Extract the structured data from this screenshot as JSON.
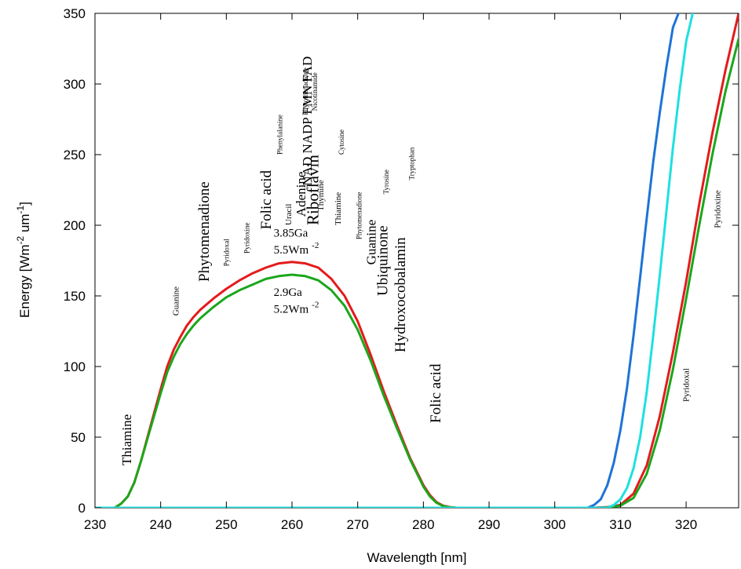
{
  "chart_data": {
    "type": "line",
    "xlabel": "Wavelength [nm]",
    "ylabel_main": "Energy [Wm",
    "ylabel_sup1": "-2",
    "ylabel_mid": " um",
    "ylabel_sup2": "-1",
    "ylabel_end": "]",
    "xlim": [
      230,
      328
    ],
    "ylim": [
      0,
      350
    ],
    "xticks": [
      230,
      240,
      250,
      260,
      270,
      280,
      290,
      300,
      310,
      320
    ],
    "yticks": [
      0,
      50,
      100,
      150,
      200,
      250,
      300,
      350
    ],
    "grid": false,
    "series": [
      {
        "color": "#e41a1c",
        "x": [
          230,
          233,
          234,
          235,
          236,
          237,
          238,
          239,
          240,
          241,
          242,
          243,
          244,
          245,
          246,
          248,
          250,
          252,
          254,
          256,
          258,
          260,
          262,
          264,
          266,
          268,
          270,
          272,
          274,
          276,
          278,
          280,
          281,
          282,
          283,
          284,
          285,
          286,
          290,
          300,
          306,
          308,
          310,
          312,
          314,
          316,
          318,
          320,
          322,
          324,
          326,
          328
        ],
        "y": [
          0,
          0,
          3,
          8,
          18,
          33,
          50,
          67,
          84,
          100,
          112,
          121,
          129,
          135,
          140,
          148,
          155,
          161,
          166,
          170,
          173,
          174,
          173,
          170,
          162,
          150,
          132,
          108,
          82,
          58,
          35,
          16,
          9,
          4,
          1.5,
          0.5,
          0,
          0,
          0,
          0,
          0,
          0.5,
          2,
          10,
          30,
          65,
          110,
          160,
          215,
          265,
          310,
          350
        ]
      },
      {
        "color": "#1ba61b",
        "x": [
          230,
          233,
          234,
          235,
          236,
          237,
          238,
          239,
          240,
          241,
          242,
          243,
          244,
          245,
          246,
          248,
          250,
          252,
          254,
          256,
          258,
          260,
          262,
          264,
          266,
          268,
          270,
          272,
          274,
          276,
          278,
          280,
          281,
          282,
          283,
          284,
          285,
          286,
          290,
          300,
          306,
          308,
          310,
          312,
          314,
          316,
          318,
          320,
          322,
          324,
          326,
          328
        ],
        "y": [
          0,
          0,
          3,
          8,
          18,
          33,
          49,
          65,
          81,
          96,
          107,
          116,
          123,
          129,
          134,
          142,
          149,
          154,
          158,
          162,
          164,
          165,
          164,
          161,
          154,
          143,
          126,
          104,
          79,
          56,
          34,
          15,
          8,
          3.5,
          1.2,
          0.4,
          0,
          0,
          0,
          0,
          0,
          0.3,
          1.5,
          7,
          24,
          55,
          98,
          148,
          200,
          250,
          295,
          332
        ]
      },
      {
        "color": "#1e73d6",
        "x": [
          230,
          300,
          305,
          306,
          307,
          308,
          309,
          310,
          311,
          312,
          313,
          314,
          315,
          316,
          317,
          318,
          319,
          320
        ],
        "y": [
          0,
          0,
          0,
          2,
          6,
          16,
          32,
          55,
          85,
          122,
          163,
          205,
          245,
          280,
          312,
          340,
          352,
          355
        ]
      },
      {
        "color": "#1ee0e0",
        "x": [
          230,
          300,
          308,
          309,
          310,
          311,
          312,
          313,
          314,
          315,
          316,
          317,
          318,
          319,
          320,
          321,
          322
        ],
        "y": [
          0,
          0,
          0,
          2,
          6,
          14,
          28,
          50,
          82,
          122,
          165,
          210,
          255,
          295,
          330,
          350,
          360
        ]
      }
    ],
    "annotations": [
      {
        "text": "3.85Ga",
        "x": 257.2,
        "y": 192,
        "size": 15,
        "rot": 0
      },
      {
        "text": "5.5Wm",
        "sup": "-2",
        "x": 257.2,
        "y": 180,
        "size": 15,
        "rot": 0
      },
      {
        "text": "2.9Ga",
        "x": 257.2,
        "y": 150,
        "size": 15,
        "rot": 0
      },
      {
        "text": "5.2Wm",
        "sup": "-2",
        "x": 257.2,
        "y": 138,
        "size": 15,
        "rot": 0
      },
      {
        "text": "Thiamine",
        "x": 235.5,
        "y": 30,
        "size": 17,
        "rot": -90
      },
      {
        "text": "Guanine",
        "x": 242.7,
        "y": 136,
        "size": 11,
        "rot": -90
      },
      {
        "text": "Phytomenadione",
        "x": 247.3,
        "y": 160,
        "size": 19,
        "rot": -90
      },
      {
        "text": "Pyridoxal",
        "x": 250.4,
        "y": 171,
        "size": 9,
        "rot": -90
      },
      {
        "text": "Pyridoxine",
        "x": 253.5,
        "y": 180,
        "size": 9,
        "rot": -90
      },
      {
        "text": "Folic acid",
        "x": 256.8,
        "y": 197,
        "size": 19,
        "rot": -90
      },
      {
        "text": "Phenylalanine",
        "x": 258.5,
        "y": 250,
        "size": 9,
        "rot": -90
      },
      {
        "text": "Uracil",
        "x": 259.9,
        "y": 200,
        "size": 11,
        "rot": -90
      },
      {
        "text": "Adenine",
        "x": 262.0,
        "y": 206,
        "size": 17,
        "rot": -90
      },
      {
        "text": "NAD NADP FMN FAD",
        "x": 263.0,
        "y": 228,
        "size": 17,
        "rot": -90
      },
      {
        "text": "Riboflavin",
        "x": 264.0,
        "y": 200,
        "size": 21,
        "rot": -90
      },
      {
        "text": "Phytomenadione",
        "x": 262.4,
        "y": 278,
        "size": 9,
        "rot": -90
      },
      {
        "text": "Nicotinamide",
        "x": 263.8,
        "y": 281,
        "size": 9,
        "rot": -90
      },
      {
        "text": "Thymine",
        "x": 264.8,
        "y": 210,
        "size": 11,
        "rot": -90
      },
      {
        "text": "Cytosine",
        "x": 267.9,
        "y": 250,
        "size": 9,
        "rot": -90
      },
      {
        "text": "Thiamine",
        "x": 267.4,
        "y": 200,
        "size": 11,
        "rot": -90
      },
      {
        "text": "Phytomenadione",
        "x": 270.6,
        "y": 190,
        "size": 9,
        "rot": -90
      },
      {
        "text": "Guanine",
        "x": 272.7,
        "y": 172,
        "size": 17,
        "rot": -90
      },
      {
        "text": "Ubiquinone",
        "x": 274.5,
        "y": 150,
        "size": 19,
        "rot": -90
      },
      {
        "text": "Tyrosine",
        "x": 274.7,
        "y": 222,
        "size": 9,
        "rot": -90
      },
      {
        "text": "Hydroxocobalamin",
        "x": 277.2,
        "y": 110,
        "size": 19,
        "rot": -90
      },
      {
        "text": "Tryptophan",
        "x": 278.6,
        "y": 232,
        "size": 9,
        "rot": -90
      },
      {
        "text": "Folic acid",
        "x": 282.6,
        "y": 60,
        "size": 19,
        "rot": -90
      },
      {
        "text": "Pyridoxal",
        "x": 320.4,
        "y": 75,
        "size": 11,
        "rot": -90
      },
      {
        "text": "Pyridoxine",
        "x": 325.2,
        "y": 198,
        "size": 11,
        "rot": -90
      }
    ]
  }
}
